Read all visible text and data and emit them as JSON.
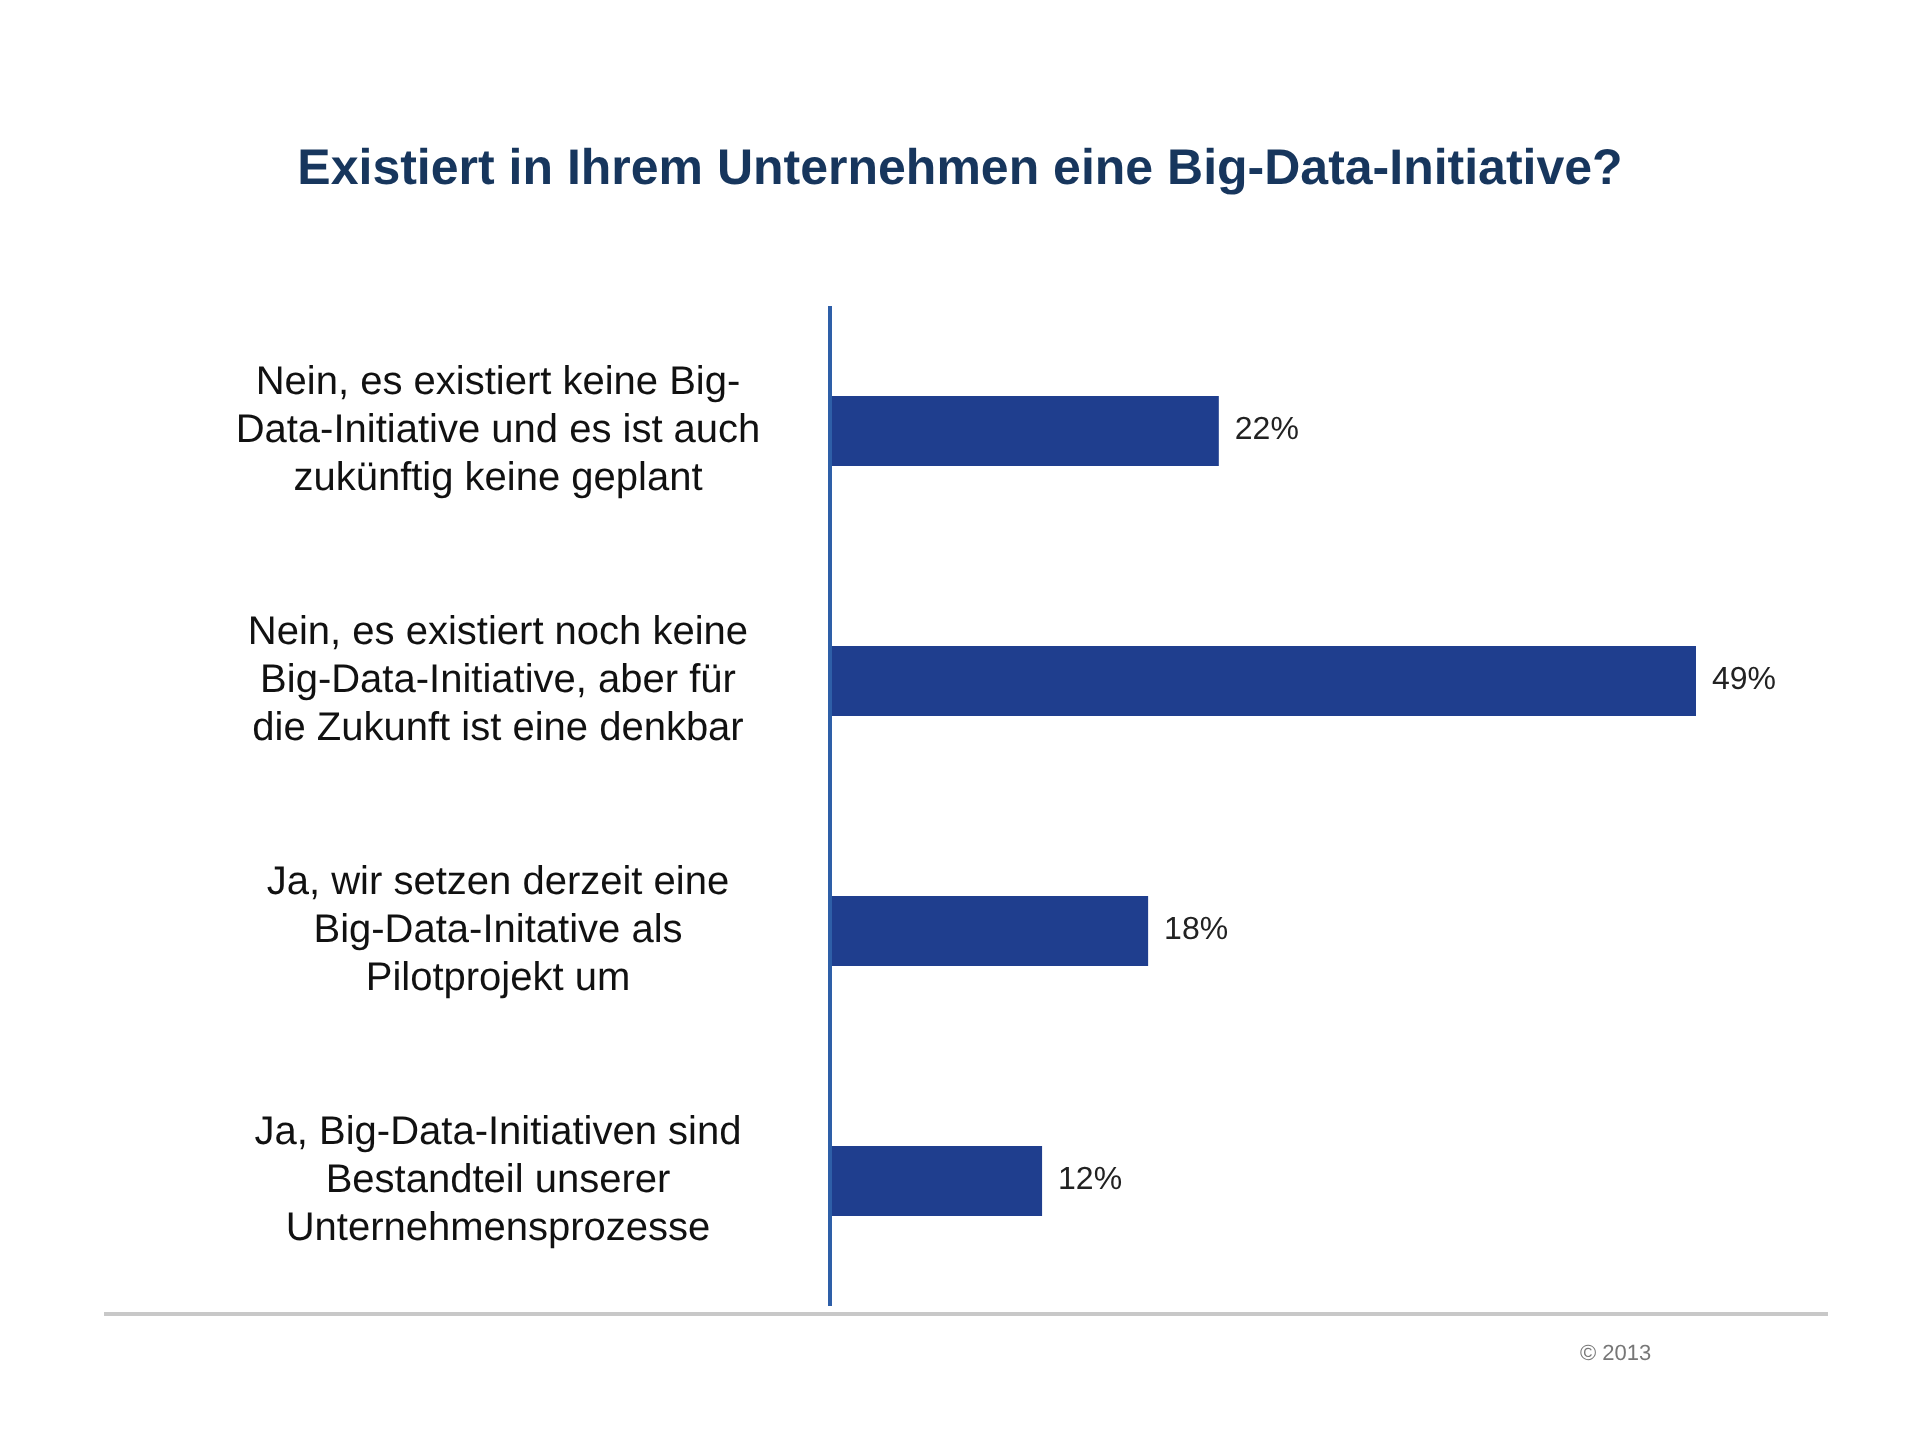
{
  "chart_data": {
    "type": "bar",
    "orientation": "horizontal",
    "title": "Existiert in Ihrem Unternehmen eine Big-Data-Initiative?",
    "categories": [
      "Nein, es existiert keine Big-Data-Initiative und es ist auch zukünftig keine geplant",
      "Nein, es existiert noch keine Big-Data-Initiative, aber für die Zukunft ist eine denkbar",
      "Ja, wir setzen derzeit eine Big-Data-Initative als Pilotprojekt um",
      "Ja, Big-Data-Initiativen sind Bestandteil unserer Unternehmensprozesse"
    ],
    "values": [
      22,
      49,
      18,
      12
    ],
    "value_labels": [
      "22%",
      "49%",
      "18%",
      "12%"
    ],
    "color": "#1f3e8e",
    "annotations": [
      "© 2013"
    ]
  }
}
